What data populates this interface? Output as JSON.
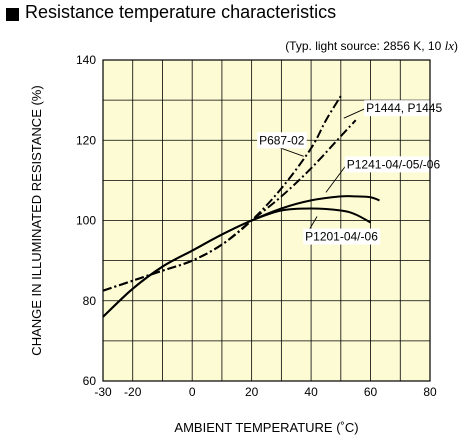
{
  "header": {
    "title": "Resistance temperature characteristics",
    "subtitle_prefix": "(Typ. light source: 2856 K, 10 ",
    "subtitle_unit": "lx",
    "subtitle_suffix": ")"
  },
  "colors": {
    "plot_background": "#fdfbd4",
    "grid": "#000000",
    "line": "#000000",
    "label_background": "#ffffff"
  },
  "chart_data": {
    "type": "line",
    "title": "Resistance temperature characteristics",
    "xlabel": "AMBIENT TEMPERATURE (˚C)",
    "ylabel": "CHANGE IN ILLUMINATED RESISTANCE (%)",
    "xlim": [
      -30,
      80
    ],
    "ylim": [
      60,
      140
    ],
    "xticks": [
      -30,
      -20,
      0,
      20,
      40,
      60,
      80
    ],
    "yticks": [
      60,
      80,
      100,
      120,
      140
    ],
    "grid": true,
    "series": [
      {
        "name": "P687-02",
        "style": "dash-dot",
        "x": [
          -30,
          -20,
          -10,
          0,
          10,
          20,
          30,
          40,
          45,
          50
        ],
        "y": [
          82.5,
          85,
          87.5,
          90,
          94,
          100,
          108,
          118,
          125,
          131
        ]
      },
      {
        "name": "P1444, P1445",
        "style": "dash-dot",
        "x": [
          -30,
          -20,
          -10,
          0,
          10,
          20,
          30,
          40,
          50,
          55
        ],
        "y": [
          82.5,
          85,
          87.5,
          90,
          94,
          100,
          106,
          113,
          121,
          125
        ]
      },
      {
        "name": "P1241-04/-05/-06",
        "style": "solid",
        "x": [
          -30,
          -20,
          -10,
          0,
          10,
          20,
          30,
          40,
          50,
          55,
          60,
          63
        ],
        "y": [
          76,
          83,
          88.5,
          92.5,
          96.5,
          100,
          103,
          105,
          106,
          106,
          105.8,
          105
        ]
      },
      {
        "name": "P1201-04/-06",
        "style": "solid",
        "x": [
          -30,
          -20,
          -10,
          0,
          10,
          20,
          30,
          40,
          50,
          55,
          60
        ],
        "y": [
          76,
          83,
          88.5,
          92.5,
          96.5,
          100,
          102.5,
          103,
          102.5,
          101.5,
          99.5
        ]
      }
    ],
    "annotations": [
      {
        "text": "P687-02",
        "x": 22.5,
        "y": 119,
        "leader_to": [
          37.5,
          116
        ]
      },
      {
        "text": "P1444, P1445",
        "x": 58.5,
        "y": 127,
        "leader_to": [
          51,
          125.5
        ]
      },
      {
        "text": "P1241-04/-05/-06",
        "x": 52,
        "y": 113,
        "leader_to": [
          45,
          107
        ]
      },
      {
        "text": "P1201-04/-06",
        "x": 38,
        "y": 95,
        "leader_to": [
          42,
          101
        ]
      }
    ]
  }
}
